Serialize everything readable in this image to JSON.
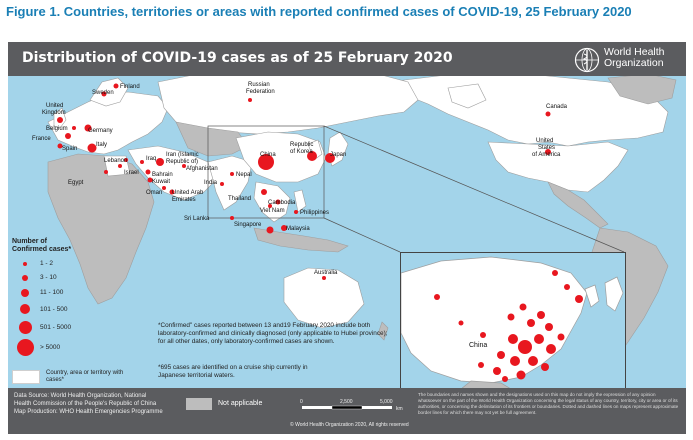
{
  "figure_title": "Figure 1. Countries, territories or areas with reported confirmed cases of COVID-19, 25 February 2020",
  "map": {
    "title": "Distribution of COVID-19 cases as of 25 February 2020",
    "org_line1": "World Health",
    "org_line2": "Organization",
    "labels": {
      "finland": "Finland",
      "sweden": "Sweden",
      "russia1": "Russian",
      "russia2": "Federation",
      "canada": "Canada",
      "uk1": "United",
      "uk2": "Kingdom",
      "belgium": "Belgium",
      "germany": "Germany",
      "france": "France",
      "spain": "Spain",
      "italy": "Italy",
      "lebanon": "Lebanon",
      "israel": "Israel",
      "egypt": "Egypt",
      "iraq": "Iraq",
      "iran1": "Iran (Islamic",
      "iran2": "Republic of)",
      "afghanistan": "Afghanistan",
      "bahrain": "Bahrain",
      "kuwait": "Kuwait",
      "oman": "Oman",
      "uae1": "United Arab",
      "uae2": "Emirates",
      "nepal": "Nepal",
      "india": "India",
      "srilanka": "Sri Lanka",
      "china": "China",
      "korea1": "Republic",
      "korea2": "of Korea",
      "japan": "Japan",
      "thailand": "Thailand",
      "cambodia": "Cambodia",
      "vietnam": "Viet Nam",
      "philippines": "Philippines",
      "singapore": "Singapore",
      "malaysia": "Malaysia",
      "australia": "Australia",
      "usa1": "United",
      "usa2": "States",
      "usa3": "of America",
      "inset_china": "China"
    }
  },
  "legend": {
    "title1": "Number of",
    "title2": "Confirmed cases*",
    "items": [
      "1 - 2",
      "3 - 10",
      "11 - 100",
      "101 - 500",
      "501 - 5000",
      "> 5000"
    ],
    "country_label": "Country, area or territory with cases*"
  },
  "notes": {
    "note1": "*Confirmed\" cases reported between 13 and19 February 2020 include both laboratory-confirmed and clinically diagnosed (only applicable to Hubei province); for all other dates, only laboratory-confirmed cases are shown.",
    "note2": "*695 cases are identified on a cruise ship currently in Japanese territorial waters."
  },
  "footer": {
    "src1": "Data Source: World Health Organization, National",
    "src2": "Health Commission of the People's Republic of China",
    "src3": "Map Production: WHO Health Emergencies Programme",
    "na_label": "Not applicable",
    "scale_0": "0",
    "scale_1": "2,500",
    "scale_2": "5,000",
    "scale_unit": "km",
    "copyright": "© World Health Organization 2020, All rights reserved",
    "disclaimer": "The boundaries and names shown and the designations used on this map do not imply the expression of any opinion whatsoever on the part of the World Health Organization concerning the legal status of any country, territory, city or area or of its authorities, or concerning the delimitation of its frontiers or boundaries. Dotted and dashed lines on maps represent approximate border lines for which there may not yet be full agreement."
  },
  "colors": {
    "ocean": "#a3d4ea",
    "affected_country": "#ffffff",
    "other_land": "#bdbdbd",
    "case_marker": "#e8171f",
    "banner": "#5b5c5f",
    "title_blue": "#1a7fb5"
  }
}
